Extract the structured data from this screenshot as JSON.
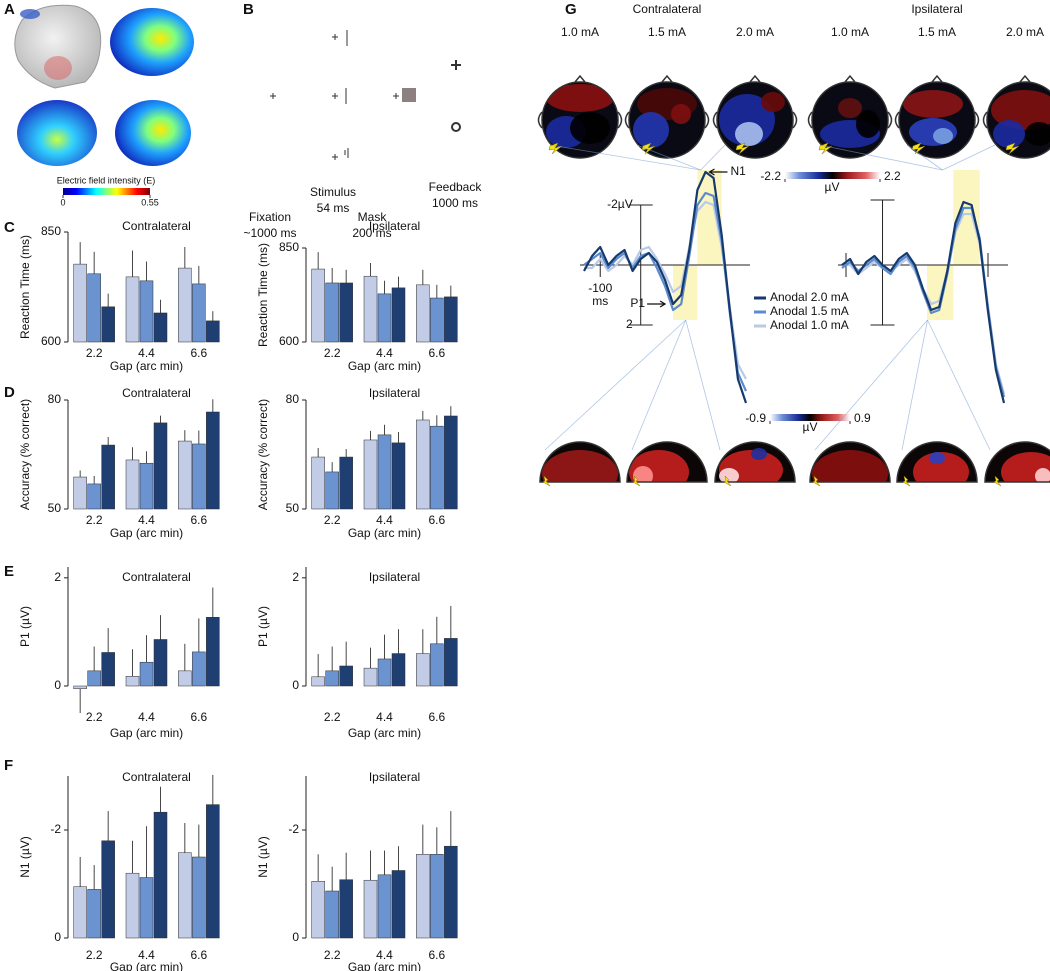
{
  "panel_labels": [
    "A",
    "B",
    "C",
    "D",
    "E",
    "F",
    "G"
  ],
  "panel_a": {
    "colorbar_label": "Electric field intensity (E)",
    "colorbar_ticks": [
      0,
      0.55
    ]
  },
  "panel_b": {
    "fixation": "Fixation",
    "fixation_duration": "~1000 ms",
    "stimulus": "Stimulus",
    "stimulus_duration": "54 ms",
    "mask": "Mask",
    "mask_duration": "200 ms",
    "feedback": "Feedback",
    "feedback_duration": "1000 ms"
  },
  "panel_g": {
    "groups": [
      "Contralateral",
      "Ipsilateral"
    ],
    "intensities": [
      "1.0 mA",
      "1.5 mA",
      "2.0 mA",
      "1.0 mA",
      "1.5 mA",
      "2.0 mA"
    ],
    "colorbar_top": {
      "ticks": [
        -2.2,
        2.2
      ],
      "unit": "µV"
    },
    "colorbar_bottom": {
      "ticks": [
        -0.9,
        0.9
      ],
      "unit": "µV"
    }
  },
  "chart_data": [
    {
      "type": "bar",
      "title": "Contralateral",
      "ylabel": "Reaction Time (ms)",
      "xlabel": "Gap (arc min)",
      "categories": [
        "2.2",
        "4.4",
        "6.6"
      ],
      "ylim": [
        600,
        850
      ],
      "yticks": [
        600,
        850
      ],
      "series": [
        {
          "color": "#c3cce6",
          "values": [
            777,
            748,
            768
          ],
          "errors": [
            50,
            60,
            48
          ]
        },
        {
          "color": "#6a93cf",
          "values": [
            755,
            739,
            732
          ],
          "errors": [
            50,
            44,
            41
          ]
        },
        {
          "color": "#1f3f73",
          "values": [
            680,
            666,
            648
          ],
          "errors": [
            30,
            30,
            22
          ]
        }
      ]
    },
    {
      "type": "bar",
      "title": "Ipsilateral",
      "ylabel": "Reaction Time (ms)",
      "xlabel": "Gap (arc min)",
      "categories": [
        "2.2",
        "4.4",
        "6.6"
      ],
      "ylim": [
        600,
        850
      ],
      "yticks": [
        600,
        850
      ],
      "series": [
        {
          "color": "#c3cce6",
          "values": [
            794,
            775,
            752
          ],
          "errors": [
            45,
            35,
            40
          ]
        },
        {
          "color": "#6a93cf",
          "values": [
            757,
            728,
            717
          ],
          "errors": [
            40,
            35,
            35
          ]
        },
        {
          "color": "#1f3f73",
          "values": [
            757,
            744,
            720
          ],
          "errors": [
            35,
            30,
            30
          ]
        }
      ]
    },
    {
      "type": "bar",
      "title": "Contralateral",
      "ylabel": "Accuracy (% correct)",
      "xlabel": "Gap (arc min)",
      "categories": [
        "2.2",
        "4.4",
        "6.6"
      ],
      "ylim": [
        50,
        80
      ],
      "yticks": [
        50,
        80
      ],
      "series": [
        {
          "color": "#c3cce6",
          "values": [
            58.8,
            63.5,
            68.7
          ],
          "errors": [
            1.8,
            3.5,
            3
          ]
        },
        {
          "color": "#6a93cf",
          "values": [
            56.9,
            62.6,
            67.9
          ],
          "errors": [
            2.2,
            3.3,
            3.7
          ]
        },
        {
          "color": "#1f3f73",
          "values": [
            67.6,
            73.7,
            76.7
          ],
          "errors": [
            2.2,
            2,
            3.5
          ]
        }
      ]
    },
    {
      "type": "bar",
      "title": "Ipsilateral",
      "ylabel": "Accuracy (% correct)",
      "xlabel": "Gap (arc min)",
      "categories": [
        "2.2",
        "4.4",
        "6.6"
      ],
      "ylim": [
        50,
        80
      ],
      "yticks": [
        50,
        80
      ],
      "series": [
        {
          "color": "#c3cce6",
          "values": [
            64.3,
            69,
            74.5
          ],
          "errors": [
            2.5,
            2.5,
            2.5
          ]
        },
        {
          "color": "#6a93cf",
          "values": [
            60.2,
            70.4,
            72.8
          ],
          "errors": [
            2.7,
            2.8,
            3
          ]
        },
        {
          "color": "#1f3f73",
          "values": [
            64.3,
            68.2,
            75.6
          ],
          "errors": [
            2.2,
            3,
            2.7
          ]
        }
      ]
    },
    {
      "type": "bar",
      "title": "Contralateral",
      "ylabel": "P1 (µV)",
      "xlabel": "Gap (arc min)",
      "categories": [
        "2.2",
        "4.4",
        "6.6"
      ],
      "ylim": [
        0,
        2.2
      ],
      "yticks": [
        0,
        2
      ],
      "series": [
        {
          "color": "#c3cce6",
          "values": [
            -0.05,
            0.18,
            0.28
          ],
          "errors": [
            0.45,
            0.5,
            0.5
          ]
        },
        {
          "color": "#6a93cf",
          "values": [
            0.28,
            0.44,
            0.63
          ],
          "errors": [
            0.45,
            0.5,
            0.62
          ]
        },
        {
          "color": "#1f3f73",
          "values": [
            0.62,
            0.86,
            1.27
          ],
          "errors": [
            0.45,
            0.45,
            0.55
          ]
        }
      ]
    },
    {
      "type": "bar",
      "title": "Ipsilateral",
      "ylabel": "P1 (µV)",
      "xlabel": "Gap (arc min)",
      "categories": [
        "2.2",
        "4.4",
        "6.6"
      ],
      "ylim": [
        0,
        2.2
      ],
      "yticks": [
        0,
        2
      ],
      "series": [
        {
          "color": "#c3cce6",
          "values": [
            0.17,
            0.33,
            0.6
          ],
          "errors": [
            0.42,
            0.38,
            0.45
          ]
        },
        {
          "color": "#6a93cf",
          "values": [
            0.28,
            0.5,
            0.78
          ],
          "errors": [
            0.45,
            0.45,
            0.5
          ]
        },
        {
          "color": "#1f3f73",
          "values": [
            0.37,
            0.6,
            0.88
          ],
          "errors": [
            0.45,
            0.45,
            0.6
          ]
        }
      ]
    },
    {
      "type": "bar",
      "title": "Contralateral",
      "ylabel": "N1 (µV)",
      "xlabel": "Gap (arc min)",
      "categories": [
        "2.2",
        "4.4",
        "6.6"
      ],
      "ylim": [
        0,
        -3
      ],
      "yticks": [
        0,
        -2
      ],
      "series": [
        {
          "color": "#c3cce6",
          "values": [
            -0.95,
            -1.2,
            -1.58
          ],
          "errors": [
            0.55,
            0.6,
            0.55
          ]
        },
        {
          "color": "#6a93cf",
          "values": [
            -0.9,
            -1.12,
            -1.5
          ],
          "errors": [
            0.45,
            0.95,
            0.6
          ]
        },
        {
          "color": "#1f3f73",
          "values": [
            -1.8,
            -2.33,
            -2.47
          ],
          "errors": [
            0.55,
            0.47,
            0.55
          ]
        }
      ]
    },
    {
      "type": "bar",
      "title": "Ipsilateral",
      "ylabel": "N1 (µV)",
      "xlabel": "Gap (arc min)",
      "categories": [
        "2.2",
        "4.4",
        "6.6"
      ],
      "ylim": [
        0,
        -3
      ],
      "yticks": [
        0,
        -2
      ],
      "series": [
        {
          "color": "#c3cce6",
          "values": [
            -1.05,
            -1.07,
            -1.55
          ],
          "errors": [
            0.5,
            0.55,
            0.55
          ]
        },
        {
          "color": "#6a93cf",
          "values": [
            -0.87,
            -1.17,
            -1.55
          ],
          "errors": [
            0.45,
            0.45,
            0.5
          ]
        },
        {
          "color": "#1f3f73",
          "values": [
            -1.08,
            -1.25,
            -1.7
          ],
          "errors": [
            0.5,
            0.45,
            0.65
          ]
        }
      ]
    },
    {
      "type": "line",
      "x": [
        -140,
        -120,
        -100,
        -80,
        -60,
        -40,
        -20,
        0,
        20,
        40,
        60,
        80,
        100,
        120,
        140,
        160,
        180,
        200,
        220,
        240,
        260
      ],
      "xlim": [
        -150,
        270
      ],
      "ylim": [
        5,
        -3.5
      ],
      "xticks": [
        {
          "value": -100,
          "label": "-100\nms"
        }
      ],
      "yticks": [
        {
          "value": -2,
          "label": "-2µV"
        },
        2
      ],
      "windows": [
        [
          80,
          140
        ],
        [
          140,
          200
        ]
      ],
      "annotations": [
        "N1",
        "P1"
      ],
      "series": [
        {
          "name": "Anodal 2.0 mA",
          "color": "#163a6e",
          "values": [
            0.2,
            -0.3,
            -0.6,
            0,
            -0.3,
            -0.5,
            0.2,
            -0.2,
            -0.4,
            -0.1,
            0.5,
            1.3,
            1.0,
            -0.5,
            -2.5,
            -3.1,
            -2.9,
            -1.0,
            1.5,
            3.8,
            4.6
          ]
        },
        {
          "name": "Anodal 1.5 mA",
          "color": "#5b8bcc",
          "values": [
            0,
            -0.2,
            -0.4,
            0.1,
            -0.2,
            -0.4,
            0.1,
            -0.3,
            -0.4,
            0.1,
            0.7,
            1.5,
            1.3,
            -0.3,
            -2.0,
            -2.4,
            -2.3,
            -0.8,
            1.6,
            3.6,
            4.2
          ]
        },
        {
          "name": "Anodal 1.0 mA",
          "color": "#b9c9e6",
          "values": [
            0.1,
            0.1,
            -0.2,
            0.2,
            0,
            -0.3,
            0,
            -0.5,
            -0.6,
            -0.2,
            0.3,
            0.9,
            0.7,
            -0.6,
            -1.8,
            -2.1,
            -2.0,
            -0.6,
            1.4,
            3.3,
            3.8
          ]
        }
      ]
    },
    {
      "type": "line",
      "x": [
        -100,
        -80,
        -60,
        -40,
        -20,
        0,
        20,
        40,
        60,
        80,
        100,
        120,
        140,
        160,
        180,
        200,
        220,
        240,
        260,
        280,
        300
      ],
      "xlim": [
        -110,
        310
      ],
      "ylim": [
        5,
        -3.5
      ],
      "windows": [
        [
          110,
          175
        ],
        [
          175,
          240
        ]
      ],
      "series": [
        {
          "color": "#163a6e",
          "values": [
            0,
            -0.2,
            0.3,
            -0.1,
            -0.3,
            0,
            0.2,
            -0.2,
            -0.4,
            0,
            0.8,
            1.5,
            1.4,
            0.2,
            -1.4,
            -2.1,
            -2.0,
            -0.8,
            1.5,
            3.5,
            4.6
          ]
        },
        {
          "color": "#5b8bcc",
          "values": [
            0.1,
            -0.1,
            0.2,
            0,
            -0.2,
            0.1,
            0.3,
            -0.1,
            -0.3,
            0.1,
            0.9,
            1.6,
            1.5,
            0.3,
            -1.2,
            -1.9,
            -1.9,
            -0.9,
            1.4,
            3.4,
            4.4
          ]
        },
        {
          "color": "#b9c9e6",
          "values": [
            0,
            0,
            0.3,
            0.1,
            -0.1,
            0.1,
            0.2,
            0,
            -0.2,
            0.2,
            0.8,
            1.3,
            1.2,
            0.2,
            -1.1,
            -1.7,
            -1.7,
            -0.7,
            1.3,
            3.3,
            4.3
          ]
        }
      ]
    }
  ]
}
